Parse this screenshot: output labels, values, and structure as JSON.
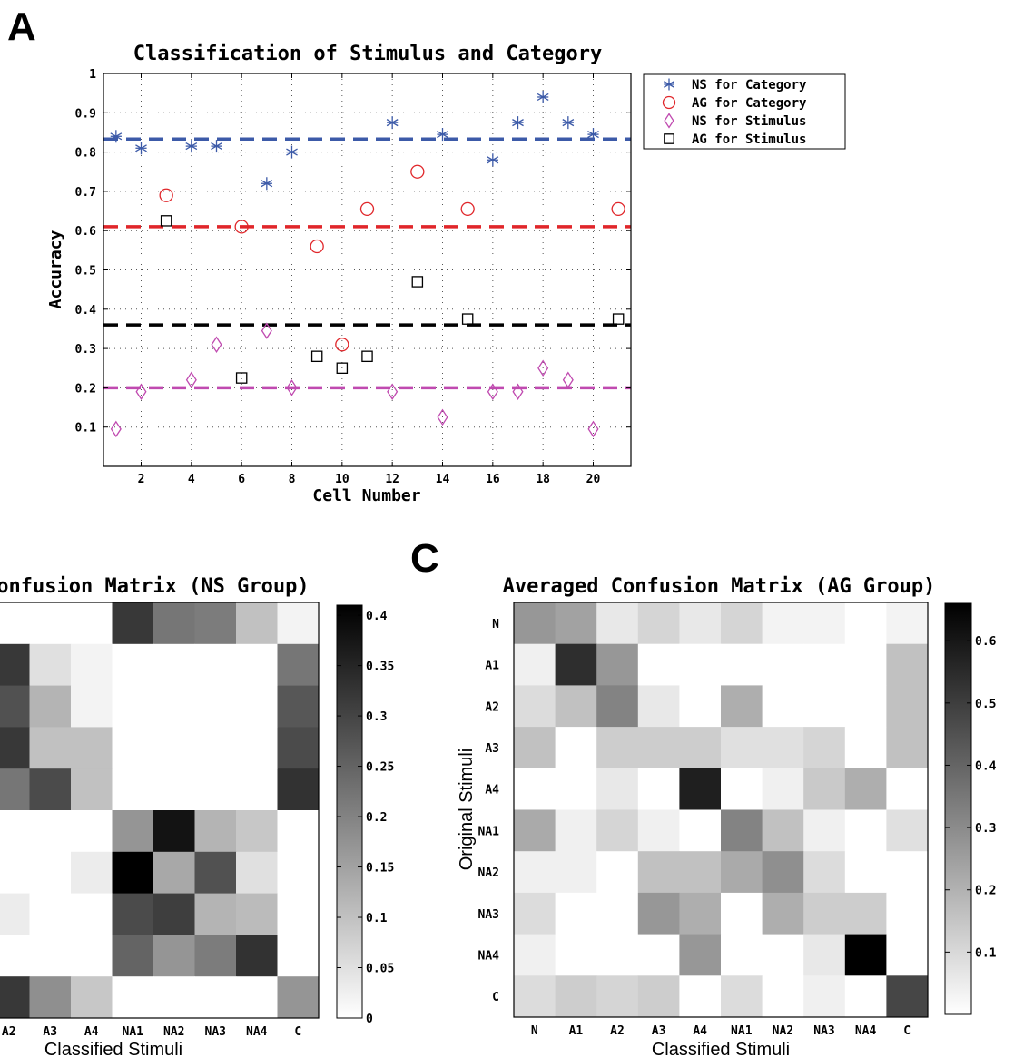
{
  "panels": {
    "a": {
      "letter": "A"
    },
    "c": {
      "letter": "C"
    }
  },
  "chart_data": [
    {
      "type": "scatter",
      "title": "Classification of Stimulus and Category",
      "xlabel": "Cell Number",
      "ylabel": "Accuracy",
      "xlim": [
        0.5,
        21.5
      ],
      "ylim": [
        0,
        1
      ],
      "xticks": [
        2,
        4,
        6,
        8,
        10,
        12,
        14,
        16,
        18,
        20
      ],
      "yticks": [
        0.1,
        0.2,
        0.3,
        0.4,
        0.5,
        0.6,
        0.7,
        0.8,
        0.9,
        1
      ],
      "grid": true,
      "legend_position": "outside-top-right",
      "series": [
        {
          "name": "NS for Category",
          "marker": "asterisk",
          "color": "#3c5aa8",
          "x": [
            1,
            2,
            4,
            5,
            7,
            8,
            12,
            14,
            16,
            17,
            18,
            19,
            20
          ],
          "y": [
            0.84,
            0.81,
            0.815,
            0.815,
            0.72,
            0.8,
            0.875,
            0.845,
            0.78,
            0.875,
            0.94,
            0.875,
            0.845
          ],
          "mean": 0.833
        },
        {
          "name": "AG for Category",
          "marker": "circle",
          "color": "#e0262a",
          "x": [
            3,
            6,
            9,
            10,
            11,
            13,
            15,
            21
          ],
          "y": [
            0.69,
            0.61,
            0.56,
            0.31,
            0.655,
            0.75,
            0.655,
            0.655
          ],
          "mean": 0.61
        },
        {
          "name": "NS for Stimulus",
          "marker": "diamond",
          "color": "#c04ab0",
          "x": [
            1,
            2,
            4,
            5,
            7,
            8,
            12,
            14,
            16,
            17,
            18,
            19,
            20
          ],
          "y": [
            0.095,
            0.19,
            0.22,
            0.31,
            0.345,
            0.2,
            0.19,
            0.125,
            0.19,
            0.19,
            0.25,
            0.22,
            0.095
          ],
          "mean": 0.2
        },
        {
          "name": "AG for Stimulus",
          "marker": "square",
          "color": "#000000",
          "x": [
            3,
            6,
            9,
            10,
            11,
            13,
            15,
            21
          ],
          "y": [
            0.625,
            0.225,
            0.28,
            0.25,
            0.28,
            0.47,
            0.375,
            0.375
          ],
          "mean": 0.36
        }
      ]
    },
    {
      "type": "heatmap",
      "title": "Confusion Matrix (NS Group)",
      "xlabel": "Classified Stimuli",
      "x_categories": [
        "A2",
        "A3",
        "A4",
        "NA1",
        "NA2",
        "NA3",
        "NA4",
        "C"
      ],
      "rows_visible": 9,
      "values": [
        [
          0,
          0,
          0,
          0.32,
          0.22,
          0.21,
          0.1,
          0.02
        ],
        [
          0.32,
          0.05,
          0.02,
          0,
          0,
          0,
          0,
          0.22
        ],
        [
          0.28,
          0.12,
          0.02,
          0,
          0,
          0,
          0,
          0.27
        ],
        [
          0.32,
          0.1,
          0.1,
          0,
          0,
          0,
          0,
          0.29
        ],
        [
          0.22,
          0.29,
          0.1,
          0,
          0,
          0,
          0,
          0.33
        ],
        [
          0,
          0,
          0,
          0.17,
          0.38,
          0.12,
          0.09,
          0
        ],
        [
          0,
          0,
          0.03,
          0.41,
          0.14,
          0.28,
          0.05,
          0
        ],
        [
          0.03,
          0,
          0,
          0.29,
          0.31,
          0.12,
          0.11,
          0
        ],
        [
          0,
          0,
          0,
          0.25,
          0.17,
          0.21,
          0.33,
          0
        ],
        [
          0.32,
          0.18,
          0.09,
          0,
          0,
          0,
          0,
          0.17
        ]
      ],
      "colorbar": {
        "min": 0,
        "max": 0.41,
        "ticks": [
          0,
          0.05,
          0.1,
          0.15,
          0.2,
          0.25,
          0.3,
          0.35,
          0.4
        ]
      }
    },
    {
      "type": "heatmap",
      "title": "Averaged Confusion Matrix (AG Group)",
      "xlabel": "Classified Stimuli",
      "ylabel": "Original Stimuli",
      "x_categories": [
        "N",
        "A1",
        "A2",
        "A3",
        "A4",
        "NA1",
        "NA2",
        "NA3",
        "NA4",
        "C"
      ],
      "y_categories": [
        "N",
        "A1",
        "A2",
        "A3",
        "A4",
        "NA1",
        "NA2",
        "NA3",
        "NA4",
        "C"
      ],
      "values": [
        [
          0.27,
          0.24,
          0.06,
          0.11,
          0.06,
          0.11,
          0.03,
          0.03,
          0,
          0.03
        ],
        [
          0.04,
          0.54,
          0.27,
          0,
          0,
          0,
          0,
          0,
          0,
          0.16
        ],
        [
          0.09,
          0.16,
          0.32,
          0.06,
          0,
          0.21,
          0,
          0,
          0,
          0.16
        ],
        [
          0.16,
          0,
          0.13,
          0.13,
          0.13,
          0.08,
          0.08,
          0.11,
          0,
          0.16
        ],
        [
          0,
          0,
          0.06,
          0,
          0.58,
          0,
          0.04,
          0.14,
          0.21,
          0
        ],
        [
          0.22,
          0.04,
          0.11,
          0.04,
          0,
          0.32,
          0.16,
          0.04,
          0,
          0.08
        ],
        [
          0.04,
          0.04,
          0,
          0.16,
          0.16,
          0.22,
          0.29,
          0.09,
          0,
          0
        ],
        [
          0.09,
          0,
          0,
          0.27,
          0.21,
          0,
          0.21,
          0.13,
          0.13,
          0
        ],
        [
          0.04,
          0,
          0,
          0,
          0.27,
          0,
          0,
          0.06,
          0.66,
          0
        ],
        [
          0.09,
          0.13,
          0.11,
          0.13,
          0,
          0.09,
          0,
          0.04,
          0,
          0.48
        ]
      ],
      "colorbar": {
        "min": 0,
        "max": 0.66,
        "ticks": [
          0.1,
          0.2,
          0.3,
          0.4,
          0.5,
          0.6
        ]
      }
    }
  ]
}
